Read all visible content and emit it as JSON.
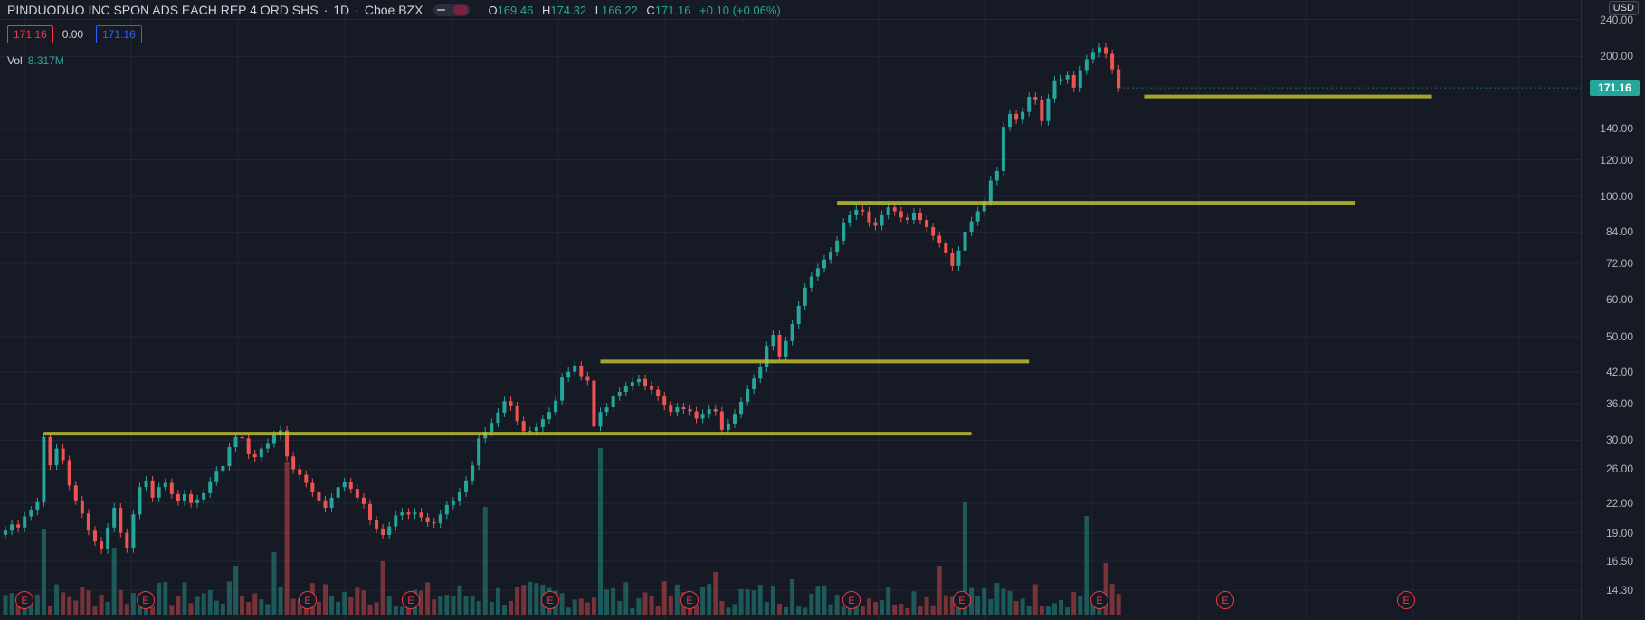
{
  "header": {
    "symbol": "PINDUODUO INC SPON ADS EACH REP 4 ORD SHS",
    "interval": "1D",
    "exchange": "Cboe BZX",
    "open_label": "O",
    "open": "169.46",
    "high_label": "H",
    "high": "174.32",
    "low_label": "L",
    "low": "166.22",
    "close_label": "C",
    "close": "171.16",
    "change": "+0.10 (+0.06%)"
  },
  "price_boxes": {
    "bid": "171.16",
    "spread": "0.00",
    "ask": "171.16"
  },
  "volume": {
    "label": "Vol",
    "value": "8.317M"
  },
  "currency": "USD",
  "current_price": "171.16",
  "earnings_marker": "E",
  "colors": {
    "up": "#26a69a",
    "down": "#ef5350",
    "background": "#161a25",
    "levels": "#c8c832",
    "grid": "#232735"
  },
  "chart_data": {
    "type": "line",
    "title": "",
    "xlabel": "",
    "ylabel": "",
    "scale": "log",
    "ylim": [
      13.5,
      255
    ],
    "y_ticks": [
      240,
      200,
      140,
      120,
      100,
      84,
      72,
      60,
      50,
      42,
      36,
      30,
      26,
      22,
      19,
      16.5,
      14.3
    ],
    "y_tick_labels": [
      "240.00",
      "200.00",
      "140.00",
      "120.00",
      "100.00",
      "84.00",
      "72.00",
      "60.00",
      "50.00",
      "42.00",
      "36.00",
      "30.00",
      "26.00",
      "22.00",
      "19.00",
      "16.50",
      "14.30"
    ],
    "series": [
      {
        "values": [
          19.2,
          19.8,
          19.5,
          20.6,
          21.2,
          22.1,
          30.5,
          26.5,
          28.8,
          27.2,
          24.0,
          22.3,
          20.9,
          19.2,
          18.2,
          17.5,
          19.5,
          21.5,
          19.0,
          17.6,
          20.8,
          23.8,
          24.6,
          22.6,
          23.8,
          24.3,
          23.0,
          22.2,
          23.0,
          22.0,
          22.4,
          23.1,
          24.5,
          25.8,
          26.4,
          29.0,
          30.5,
          30.3,
          28.0,
          27.6,
          28.8,
          29.6,
          30.8,
          31.5,
          27.7,
          26.0,
          25.3,
          24.3,
          23.2,
          22.3,
          21.5,
          22.6,
          23.8,
          24.4,
          23.6,
          22.6,
          21.9,
          20.2,
          19.4,
          18.8,
          19.6,
          20.7,
          21.0,
          20.8,
          21.0,
          20.5,
          20.0,
          19.9,
          20.8,
          21.8,
          22.2,
          23.2,
          24.6,
          26.5,
          30.3,
          31.3,
          32.7,
          34.4,
          36.4,
          35.5,
          33.0,
          31.4,
          31.4,
          32.0,
          33.3,
          34.5,
          36.5,
          40.9,
          42.1,
          43.4,
          41.2,
          40.3,
          32.1,
          34.5,
          35.3,
          37.3,
          38.1,
          39.2,
          40.0,
          40.6,
          39.3,
          38.5,
          37.3,
          35.6,
          34.5,
          35.3,
          35.0,
          34.6,
          33.4,
          34.2,
          35.0,
          34.6,
          31.6,
          32.6,
          34.2,
          36.3,
          38.6,
          40.7,
          43.0,
          47.8,
          50.5,
          45.4,
          49.0,
          53.3,
          58.3,
          63.8,
          67.4,
          70.2,
          73.3,
          76.2,
          80.5,
          88.0,
          91.2,
          93.7,
          93.0,
          88.1,
          86.6,
          91.4,
          94.8,
          93.0,
          90.2,
          89.1,
          92.4,
          89.1,
          86.0,
          82.4,
          79.5,
          75.8,
          71.0,
          76.6,
          84.1,
          88.5,
          93.0,
          97.6,
          108.3,
          113.5,
          141.2,
          150.5,
          146.2,
          152.0,
          163.7,
          161.0,
          145.3,
          162.5,
          177.7,
          178.6,
          182.3,
          171.4,
          186.8,
          197.2,
          203.5,
          209.0,
          202.5,
          187.6,
          171.2
        ]
      }
    ],
    "horizontal_levels": [
      {
        "value": 31.0,
        "from_index": 6,
        "to_index": 151
      },
      {
        "value": 44.3,
        "from_index": 93,
        "to_index": 160
      },
      {
        "value": 97.0,
        "from_index": 130,
        "to_index": 211
      },
      {
        "value": 164.0,
        "from_index": 178,
        "to_index": 223
      }
    ]
  }
}
